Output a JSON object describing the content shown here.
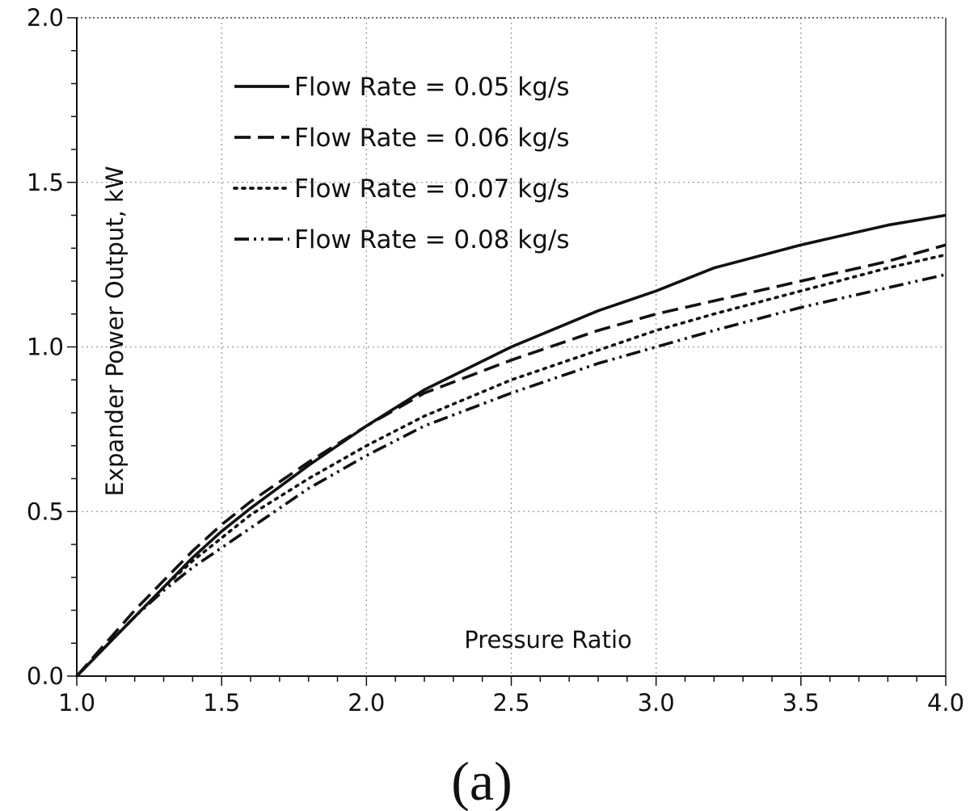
{
  "panel_label": "(a)",
  "chart_data": {
    "type": "line",
    "title": "",
    "xlabel": "Pressure Ratio",
    "ylabel": "Expander Power Output, kW",
    "xlim": [
      1.0,
      4.0
    ],
    "ylim": [
      0.0,
      2.0
    ],
    "x_ticks": [
      "1.0",
      "1.5",
      "2.0",
      "2.5",
      "3.0",
      "3.5",
      "4.0"
    ],
    "y_ticks": [
      "0.0",
      "0.5",
      "1.0",
      "1.5",
      "2.0"
    ],
    "grid": true,
    "legend_position": "top-left",
    "series": [
      {
        "name": "Flow Rate = 0.05 kg/s",
        "line_style": "solid",
        "x": [
          1.0,
          1.1,
          1.2,
          1.3,
          1.4,
          1.5,
          1.6,
          1.8,
          2.0,
          2.2,
          2.5,
          2.8,
          3.0,
          3.2,
          3.5,
          3.8,
          4.0
        ],
        "y": [
          0.0,
          0.09,
          0.18,
          0.27,
          0.36,
          0.44,
          0.51,
          0.64,
          0.76,
          0.87,
          1.0,
          1.11,
          1.17,
          1.24,
          1.31,
          1.37,
          1.4
        ]
      },
      {
        "name": "Flow Rate = 0.06 kg/s",
        "line_style": "dashed",
        "x": [
          1.0,
          1.1,
          1.2,
          1.3,
          1.4,
          1.5,
          1.6,
          1.8,
          2.0,
          2.2,
          2.5,
          2.8,
          3.0,
          3.2,
          3.5,
          3.8,
          4.0
        ],
        "y": [
          0.0,
          0.1,
          0.2,
          0.29,
          0.38,
          0.46,
          0.53,
          0.65,
          0.76,
          0.86,
          0.96,
          1.05,
          1.1,
          1.14,
          1.2,
          1.26,
          1.31
        ]
      },
      {
        "name": "Flow Rate = 0.07 kg/s",
        "line_style": "dotted",
        "x": [
          1.0,
          1.1,
          1.2,
          1.3,
          1.4,
          1.5,
          1.6,
          1.8,
          2.0,
          2.2,
          2.5,
          2.8,
          3.0,
          3.2,
          3.5,
          3.8,
          4.0
        ],
        "y": [
          0.0,
          0.09,
          0.18,
          0.27,
          0.35,
          0.42,
          0.49,
          0.6,
          0.7,
          0.79,
          0.9,
          0.99,
          1.05,
          1.1,
          1.17,
          1.24,
          1.28
        ]
      },
      {
        "name": "Flow Rate = 0.08 kg/s",
        "line_style": "dash-dot-dot",
        "x": [
          1.0,
          1.1,
          1.2,
          1.3,
          1.4,
          1.5,
          1.6,
          1.8,
          2.0,
          2.2,
          2.5,
          2.8,
          3.0,
          3.2,
          3.5,
          3.8,
          4.0
        ],
        "y": [
          0.0,
          0.09,
          0.18,
          0.26,
          0.33,
          0.39,
          0.45,
          0.57,
          0.67,
          0.76,
          0.86,
          0.95,
          1.0,
          1.05,
          1.12,
          1.18,
          1.22
        ]
      }
    ]
  }
}
